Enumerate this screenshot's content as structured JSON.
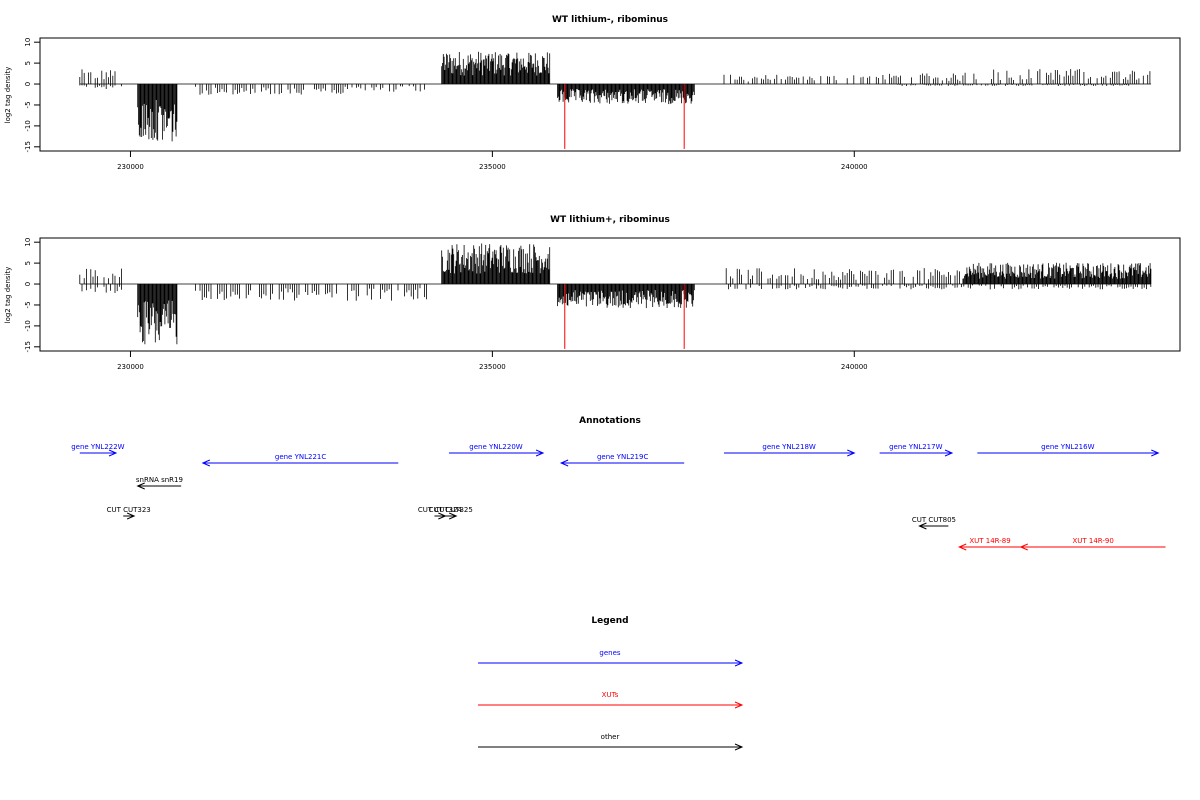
{
  "chart_data": [
    {
      "type": "bar",
      "title": "WT lithium-, ribominus",
      "ylabel": "log2 tag density",
      "xlabel": "",
      "xlim": [
        228750,
        244500
      ],
      "ylim": [
        -16,
        11
      ],
      "y_ticks": [
        10,
        5,
        0,
        -5,
        -10,
        -15
      ],
      "x_ticks": [
        230000,
        235000,
        240000
      ],
      "x_tick_labels": [
        "230000",
        "235000",
        "240000"
      ],
      "grid": false,
      "series": [
        {
          "strand": "+",
          "color": "#000000",
          "segments": [
            {
              "x_start": 229300,
              "x_end": 229900,
              "mean": 2.2,
              "max": 4.8
            },
            {
              "x_start": 234300,
              "x_end": 235800,
              "mean": 5.0,
              "max": 7.8
            },
            {
              "x_start": 238200,
              "x_end": 240000,
              "mean": 1.4,
              "max": 3.0
            },
            {
              "x_start": 240000,
              "x_end": 241500,
              "mean": 1.6,
              "max": 4.0
            },
            {
              "x_start": 241500,
              "x_end": 244100,
              "mean": 2.3,
              "max": 5.0
            }
          ]
        },
        {
          "strand": "-",
          "color": "#000000",
          "segments": [
            {
              "x_start": 229300,
              "x_end": 229900,
              "mean": -0.8,
              "max": -2.0
            },
            {
              "x_start": 230100,
              "x_end": 230650,
              "mean": -9.0,
              "max": -14.0
            },
            {
              "x_start": 230900,
              "x_end": 233000,
              "mean": -1.6,
              "max": -4.3
            },
            {
              "x_start": 233000,
              "x_end": 234100,
              "mean": -1.2,
              "max": -3.0
            },
            {
              "x_start": 235900,
              "x_end": 237800,
              "mean": -3.0,
              "max": -6.5
            },
            {
              "x_start": 240600,
              "x_end": 243800,
              "mean": -0.3,
              "max": -3.0
            }
          ]
        },
        {
          "name": "",
          "color": "#ff0000",
          "spikes": [
            {
              "x": 236000,
              "y": -15.5
            },
            {
              "x": 237650,
              "y": -15.5
            }
          ]
        }
      ]
    },
    {
      "type": "bar",
      "title": "WT lithium+, ribominus",
      "ylabel": "log2 tag density",
      "xlabel": "",
      "xlim": [
        228750,
        244500
      ],
      "ylim": [
        -16,
        11
      ],
      "y_ticks": [
        10,
        5,
        0,
        -5,
        -10,
        -15
      ],
      "x_ticks": [
        230000,
        235000,
        240000
      ],
      "x_tick_labels": [
        "230000",
        "235000",
        "240000"
      ],
      "grid": false,
      "series": [
        {
          "strand": "+",
          "color": "#000000",
          "segments": [
            {
              "x_start": 229300,
              "x_end": 229900,
              "mean": 2.4,
              "max": 4.8
            },
            {
              "x_start": 234300,
              "x_end": 235800,
              "mean": 6.2,
              "max": 10.0
            },
            {
              "x_start": 238200,
              "x_end": 241500,
              "mean": 2.4,
              "max": 4.5
            },
            {
              "x_start": 241500,
              "x_end": 244100,
              "mean": 3.2,
              "max": 5.5
            }
          ]
        },
        {
          "strand": "-",
          "color": "#000000",
          "segments": [
            {
              "x_start": 229300,
              "x_end": 229900,
              "mean": -1.4,
              "max": -3.5
            },
            {
              "x_start": 230100,
              "x_end": 230650,
              "mean": -9.5,
              "max": -15.0
            },
            {
              "x_start": 230900,
              "x_end": 234100,
              "mean": -2.5,
              "max": -5.5
            },
            {
              "x_start": 235900,
              "x_end": 237800,
              "mean": -3.6,
              "max": -7.0
            },
            {
              "x_start": 238200,
              "x_end": 244100,
              "mean": -0.8,
              "max": -3.0
            }
          ]
        },
        {
          "name": "",
          "color": "#ff0000",
          "spikes": [
            {
              "x": 236000,
              "y": -15.5
            },
            {
              "x": 237650,
              "y": -15.5
            }
          ]
        }
      ]
    }
  ],
  "annotations": {
    "title": "Annotations",
    "items": [
      {
        "label": "gene YNL222W",
        "type": "gene",
        "strand": "+",
        "start": 229300,
        "end": 229800,
        "row": 0
      },
      {
        "label": "gene YNL221C",
        "type": "gene",
        "strand": "-",
        "start": 231000,
        "end": 233700,
        "row": 1
      },
      {
        "label": "snRNA snR19",
        "type": "other",
        "strand": "-",
        "start": 230100,
        "end": 230700,
        "row": 2
      },
      {
        "label": "CUT CUT323",
        "type": "other",
        "strand": "+",
        "start": 229900,
        "end": 230050,
        "row": 3
      },
      {
        "label": "gene YNL220W",
        "type": "gene",
        "strand": "+",
        "start": 234400,
        "end": 235700,
        "row": 0
      },
      {
        "label": "gene YNL219C",
        "type": "gene",
        "strand": "-",
        "start": 235950,
        "end": 237650,
        "row": 1
      },
      {
        "label": "CUT CUT324",
        "type": "other",
        "strand": "+",
        "start": 234200,
        "end": 234350,
        "row": 3
      },
      {
        "label": "CUT CUT325",
        "type": "other",
        "strand": "+",
        "start": 234350,
        "end": 234500,
        "row": 3
      },
      {
        "label": "gene YNL218W",
        "type": "gene",
        "strand": "+",
        "start": 238200,
        "end": 240000,
        "row": 0
      },
      {
        "label": "gene YNL217W",
        "type": "gene",
        "strand": "+",
        "start": 240350,
        "end": 241350,
        "row": 0
      },
      {
        "label": "gene YNL216W",
        "type": "gene",
        "strand": "+",
        "start": 241700,
        "end": 244200,
        "row": 0
      },
      {
        "label": "CUT CUT805",
        "type": "other",
        "strand": "-",
        "start": 240900,
        "end": 241300,
        "row": 4
      },
      {
        "label": "XUT 14R-89",
        "type": "xut",
        "strand": "-",
        "start": 241450,
        "end": 242300,
        "row": 5
      },
      {
        "label": "XUT 14R-90",
        "type": "xut",
        "strand": "-",
        "start": 242300,
        "end": 244300,
        "row": 5
      }
    ]
  },
  "legend": {
    "title": "Legend",
    "items": [
      {
        "label": "genes",
        "color": "#0000ff"
      },
      {
        "label": "XUTs",
        "color": "#ff0000"
      },
      {
        "label": "other",
        "color": "#000000"
      }
    ]
  },
  "colors": {
    "gene": "#0000ff",
    "xut": "#ff0000",
    "other": "#000000",
    "baseline": "#808080"
  }
}
